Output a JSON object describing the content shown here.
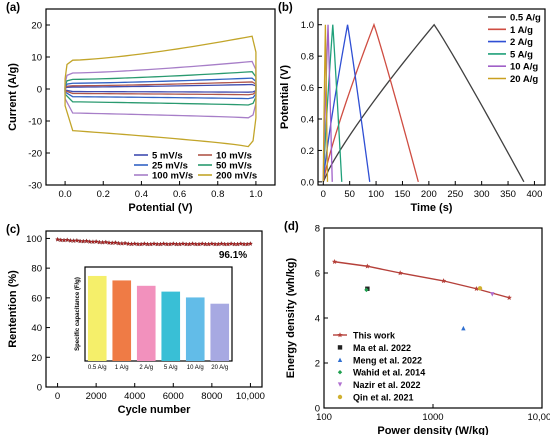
{
  "chart_data": [
    {
      "panel": "(a)",
      "type": "line",
      "xlabel": "Potential (V)",
      "ylabel": "Current (A/g)",
      "xlim": [
        -0.1,
        1.1
      ],
      "ylim": [
        -30,
        25
      ],
      "xticks": [
        "0.0",
        "0.2",
        "0.4",
        "0.6",
        "0.8",
        "1.0"
      ],
      "xtick_values": [
        0,
        0.2,
        0.4,
        0.6,
        0.8,
        1.0
      ],
      "yticks": [
        "-30",
        "-20",
        "-10",
        "0",
        "10",
        "20"
      ],
      "ytick_values": [
        -30,
        -20,
        -10,
        0,
        10,
        20
      ],
      "legend_position": "bottom-right",
      "series": [
        {
          "name": "5 mV/s",
          "color": "#404db0",
          "top_start": 0.6,
          "top_end": 1.4,
          "bottom_start": -0.8,
          "bottom_end": -1.0
        },
        {
          "name": "10 mV/s",
          "color": "#b0564a",
          "top_start": 1.0,
          "top_end": 2.2,
          "bottom_start": -1.4,
          "bottom_end": -1.8
        },
        {
          "name": "25 mV/s",
          "color": "#3263c4",
          "top_start": 1.8,
          "top_end": 3.4,
          "bottom_start": -2.4,
          "bottom_end": -3.0
        },
        {
          "name": "50 mV/s",
          "color": "#2a9a70",
          "top_start": 3.0,
          "top_end": 5.4,
          "bottom_start": -4.0,
          "bottom_end": -5.0
        },
        {
          "name": "100 mV/s",
          "color": "#a77ec8",
          "top_start": 5.0,
          "top_end": 8.6,
          "bottom_start": -7.5,
          "bottom_end": -9.0
        },
        {
          "name": "200 mV/s",
          "color": "#c2a52a",
          "top_start": 9.0,
          "top_end": 16.5,
          "bottom_start": -13.0,
          "bottom_end": -18.0
        }
      ]
    },
    {
      "panel": "(b)",
      "type": "line",
      "xlabel": "Time (s)",
      "ylabel": "Potential (V)",
      "xlim": [
        -10,
        420
      ],
      "ylim": [
        -0.02,
        1.1
      ],
      "xticks": [
        "0",
        "50",
        "100",
        "150",
        "200",
        "250",
        "300",
        "350",
        "400"
      ],
      "xtick_values": [
        0,
        50,
        100,
        150,
        200,
        250,
        300,
        350,
        400
      ],
      "yticks": [
        "0.0",
        "0.2",
        "0.4",
        "0.6",
        "0.8",
        "1.0"
      ],
      "ytick_values": [
        0,
        0.2,
        0.4,
        0.6,
        0.8,
        1.0
      ],
      "legend_position": "top-right",
      "series": [
        {
          "name": "0.5 A/g",
          "color": "#404040",
          "t_peak": 210,
          "t_end": 380
        },
        {
          "name": "1 A/g",
          "color": "#cf4d42",
          "t_peak": 96,
          "t_end": 180
        },
        {
          "name": "2 A/g",
          "color": "#2f4fd4",
          "t_peak": 46,
          "t_end": 88
        },
        {
          "name": "5 A/g",
          "color": "#20a07a",
          "t_peak": 18,
          "t_end": 35
        },
        {
          "name": "10 A/g",
          "color": "#a060c8",
          "t_peak": 9,
          "t_end": 17
        },
        {
          "name": "20 A/g",
          "color": "#c9a020",
          "t_peak": 4,
          "t_end": 8
        }
      ]
    },
    {
      "panel": "(c)",
      "type": "scatter",
      "xlabel": "Cycle number",
      "ylabel": "Rentention (%)",
      "xlim": [
        -600,
        10600
      ],
      "ylim": [
        0,
        105
      ],
      "xticks": [
        "0",
        "2000",
        "4000",
        "6000",
        "8000",
        "10,000"
      ],
      "xtick_values": [
        0,
        2000,
        4000,
        6000,
        8000,
        10000
      ],
      "yticks": [
        "0",
        "20",
        "40",
        "60",
        "80",
        "100"
      ],
      "ytick_values": [
        0,
        20,
        40,
        60,
        80,
        100
      ],
      "annotation": "96.1%",
      "retention_start": 99.0,
      "retention_end": 96.1,
      "marker_color": "#b02020",
      "inset": {
        "type": "bar",
        "ylabel": "Specific capacitance (F/g)",
        "categories": [
          "0.5 A/g",
          "1 A/g",
          "2 A/g",
          "5 A/g",
          "10 A/g",
          "20 A/g"
        ],
        "values": [
          190,
          180,
          168,
          155,
          142,
          128
        ],
        "ylim": [
          0,
          210
        ],
        "colors": [
          "#f5ef6a",
          "#ef7b45",
          "#f291bd",
          "#39bfd6",
          "#62bce8",
          "#a7a9e2"
        ]
      }
    },
    {
      "panel": "(d)",
      "type": "scatter",
      "xlabel": "Power density (W/kg)",
      "ylabel": "Energy density (wh/kg)",
      "xscale": "log",
      "xlim": [
        100,
        10000
      ],
      "ylim": [
        0,
        8
      ],
      "xticks": [
        "100",
        "1000",
        "10,000"
      ],
      "xtick_values": [
        100,
        1000,
        10000
      ],
      "yticks": [
        "0",
        "2",
        "4",
        "6",
        "8"
      ],
      "ytick_values": [
        0,
        2,
        4,
        6,
        8
      ],
      "legend_position": "bottom-left",
      "series": [
        {
          "name": "This work",
          "color": "#b5403a",
          "marker": "line-star",
          "x": [
            125,
            250,
            500,
            1250,
            2500,
            5000
          ],
          "y": [
            6.5,
            6.3,
            6.0,
            5.65,
            5.3,
            4.9
          ]
        },
        {
          "name": "Ma et al. 2022",
          "color": "#222222",
          "marker": "square",
          "x": [
            250
          ],
          "y": [
            5.3
          ]
        },
        {
          "name": "Meng et al. 2022",
          "color": "#2f6fd0",
          "marker": "triangle",
          "x": [
            1900
          ],
          "y": [
            3.55
          ]
        },
        {
          "name": "Wahid et al. 2014",
          "color": "#20a050",
          "marker": "diamond",
          "x": [
            245
          ],
          "y": [
            5.25
          ]
        },
        {
          "name": "Nazir et al. 2022",
          "color": "#b070d0",
          "marker": "triangle-down",
          "x": [
            3500
          ],
          "y": [
            5.05
          ]
        },
        {
          "name": "Qin et al. 2021",
          "color": "#d0b030",
          "marker": "circle",
          "x": [
            2700
          ],
          "y": [
            5.32
          ]
        }
      ]
    }
  ]
}
